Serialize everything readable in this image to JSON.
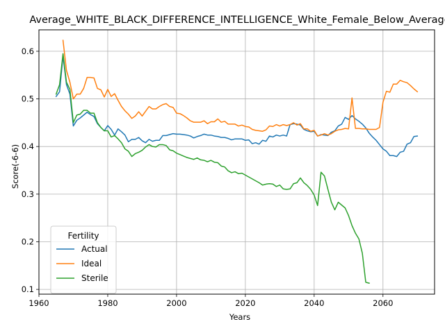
{
  "chart_data": {
    "type": "line",
    "title": "Average_WHITE_BLACK_DIFFERENCE_INTELLIGENCE_White_Female_Below_Average",
    "xlabel": "Years",
    "ylabel": "Score(-6-6)",
    "xlim": [
      1960,
      2075
    ],
    "ylim": [
      0.09,
      0.645
    ],
    "xticks": [
      1960,
      1980,
      2000,
      2020,
      2040,
      2060
    ],
    "yticks": [
      0.1,
      0.2,
      0.3,
      0.4,
      0.5,
      0.6
    ],
    "xtick_labels": [
      "1960",
      "1980",
      "2000",
      "2020",
      "2040",
      "2060"
    ],
    "ytick_labels": [
      "0.1",
      "0.2",
      "0.3",
      "0.4",
      "0.5",
      "0.6"
    ],
    "grid": true,
    "legend": {
      "title": "Fertility",
      "position": "lower-left"
    },
    "series": [
      {
        "name": "Actual",
        "color": "#1f77b4",
        "x": [
          1965,
          1966,
          1967,
          1968,
          1969,
          1970,
          1971,
          1972,
          1973,
          1974,
          1975,
          1976,
          1977,
          1978,
          1979,
          1980,
          1981,
          1982,
          1983,
          1984,
          1985,
          1986,
          1987,
          1988,
          1989,
          1990,
          1991,
          1992,
          1993,
          1994,
          1995,
          1996,
          1997,
          1998,
          1999,
          2000,
          2001,
          2002,
          2003,
          2004,
          2005,
          2006,
          2007,
          2008,
          2009,
          2010,
          2011,
          2012,
          2013,
          2014,
          2015,
          2016,
          2017,
          2018,
          2019,
          2020,
          2021,
          2022,
          2023,
          2024,
          2025,
          2026,
          2027,
          2028,
          2029,
          2030,
          2031,
          2032,
          2033,
          2034,
          2035,
          2036,
          2037,
          2038,
          2039,
          2040,
          2041,
          2042,
          2043,
          2044,
          2045,
          2046,
          2047,
          2048,
          2049,
          2050,
          2051,
          2052,
          2053,
          2054,
          2055,
          2056,
          2057,
          2058,
          2059,
          2060,
          2061,
          2062,
          2063,
          2064,
          2065,
          2066,
          2067,
          2068,
          2069,
          2070
        ],
        "y": [
          0.505,
          0.515,
          0.59,
          0.53,
          0.51,
          0.443,
          0.455,
          0.46,
          0.466,
          0.472,
          0.467,
          0.463,
          0.448,
          0.44,
          0.433,
          0.444,
          0.436,
          0.424,
          0.437,
          0.431,
          0.424,
          0.41,
          0.415,
          0.415,
          0.419,
          0.412,
          0.408,
          0.415,
          0.411,
          0.413,
          0.413,
          0.423,
          0.423,
          0.425,
          0.427,
          0.426,
          0.426,
          0.425,
          0.424,
          0.422,
          0.418,
          0.421,
          0.423,
          0.426,
          0.424,
          0.424,
          0.422,
          0.421,
          0.419,
          0.419,
          0.417,
          0.414,
          0.416,
          0.416,
          0.416,
          0.413,
          0.414,
          0.406,
          0.408,
          0.405,
          0.413,
          0.411,
          0.422,
          0.42,
          0.424,
          0.422,
          0.424,
          0.422,
          0.446,
          0.448,
          0.447,
          0.445,
          0.436,
          0.433,
          0.431,
          0.432,
          0.422,
          0.425,
          0.424,
          0.423,
          0.43,
          0.433,
          0.443,
          0.447,
          0.461,
          0.457,
          0.465,
          0.458,
          0.453,
          0.447,
          0.439,
          0.428,
          0.42,
          0.413,
          0.404,
          0.395,
          0.39,
          0.381,
          0.381,
          0.379,
          0.388,
          0.39,
          0.405,
          0.408,
          0.421,
          0.422
        ]
      },
      {
        "name": "Ideal",
        "color": "#ff7f0e",
        "x": [
          1967,
          1968,
          1969,
          1970,
          1971,
          1972,
          1973,
          1974,
          1975,
          1976,
          1977,
          1978,
          1979,
          1980,
          1981,
          1982,
          1983,
          1984,
          1985,
          1986,
          1987,
          1988,
          1989,
          1990,
          1991,
          1992,
          1993,
          1994,
          1995,
          1996,
          1997,
          1998,
          1999,
          2000,
          2001,
          2002,
          2003,
          2004,
          2005,
          2006,
          2007,
          2008,
          2009,
          2010,
          2011,
          2012,
          2013,
          2014,
          2015,
          2016,
          2017,
          2018,
          2019,
          2020,
          2021,
          2022,
          2023,
          2024,
          2025,
          2026,
          2027,
          2028,
          2029,
          2030,
          2031,
          2032,
          2033,
          2034,
          2035,
          2036,
          2037,
          2038,
          2039,
          2040,
          2041,
          2042,
          2043,
          2044,
          2045,
          2046,
          2047,
          2048,
          2049,
          2050,
          2051,
          2052,
          2053,
          2054,
          2055,
          2056,
          2057,
          2058,
          2059,
          2060,
          2061,
          2062,
          2063,
          2064,
          2065,
          2066,
          2067,
          2068,
          2069,
          2070
        ],
        "y": [
          0.623,
          0.56,
          0.535,
          0.5,
          0.51,
          0.51,
          0.522,
          0.545,
          0.545,
          0.544,
          0.522,
          0.519,
          0.504,
          0.52,
          0.505,
          0.511,
          0.497,
          0.484,
          0.475,
          0.468,
          0.459,
          0.464,
          0.473,
          0.464,
          0.474,
          0.484,
          0.479,
          0.479,
          0.484,
          0.488,
          0.49,
          0.484,
          0.482,
          0.47,
          0.469,
          0.465,
          0.46,
          0.454,
          0.451,
          0.451,
          0.451,
          0.454,
          0.448,
          0.452,
          0.452,
          0.458,
          0.451,
          0.453,
          0.447,
          0.447,
          0.447,
          0.443,
          0.445,
          0.442,
          0.441,
          0.436,
          0.434,
          0.433,
          0.432,
          0.435,
          0.443,
          0.442,
          0.446,
          0.443,
          0.446,
          0.444,
          0.446,
          0.45,
          0.445,
          0.448,
          0.437,
          0.437,
          0.432,
          0.434,
          0.422,
          0.424,
          0.427,
          0.424,
          0.427,
          0.432,
          0.435,
          0.436,
          0.438,
          0.437,
          0.502,
          0.438,
          0.438,
          0.437,
          0.437,
          0.436,
          0.436,
          0.436,
          0.44,
          0.493,
          0.516,
          0.514,
          0.531,
          0.531,
          0.539,
          0.536,
          0.534,
          0.528,
          0.521,
          0.515
        ]
      },
      {
        "name": "Sterile",
        "color": "#2ca02c",
        "x": [
          1965,
          1966,
          1967,
          1968,
          1969,
          1970,
          1971,
          1972,
          1973,
          1974,
          1975,
          1976,
          1977,
          1978,
          1979,
          1980,
          1981,
          1982,
          1983,
          1984,
          1985,
          1986,
          1987,
          1988,
          1989,
          1990,
          1991,
          1992,
          1993,
          1994,
          1995,
          1996,
          1997,
          1998,
          1999,
          2000,
          2001,
          2002,
          2003,
          2004,
          2005,
          2006,
          2007,
          2008,
          2009,
          2010,
          2011,
          2012,
          2013,
          2014,
          2015,
          2016,
          2017,
          2018,
          2019,
          2020,
          2021,
          2022,
          2023,
          2024,
          2025,
          2026,
          2027,
          2028,
          2029,
          2030,
          2031,
          2032,
          2033,
          2034,
          2035,
          2036,
          2037,
          2038,
          2039,
          2040,
          2041,
          2042,
          2043,
          2044,
          2045,
          2046,
          2047,
          2048,
          2049,
          2050,
          2051,
          2052,
          2053,
          2054,
          2055,
          2056
        ],
        "y": [
          0.51,
          0.53,
          0.595,
          0.535,
          0.52,
          0.45,
          0.466,
          0.468,
          0.476,
          0.476,
          0.47,
          0.47,
          0.45,
          0.44,
          0.433,
          0.433,
          0.42,
          0.423,
          0.416,
          0.408,
          0.395,
          0.39,
          0.379,
          0.385,
          0.388,
          0.392,
          0.399,
          0.404,
          0.4,
          0.399,
          0.404,
          0.404,
          0.402,
          0.393,
          0.391,
          0.386,
          0.383,
          0.38,
          0.377,
          0.375,
          0.373,
          0.376,
          0.372,
          0.371,
          0.368,
          0.371,
          0.367,
          0.366,
          0.359,
          0.357,
          0.349,
          0.345,
          0.347,
          0.343,
          0.344,
          0.34,
          0.336,
          0.332,
          0.328,
          0.324,
          0.319,
          0.321,
          0.322,
          0.321,
          0.316,
          0.319,
          0.311,
          0.31,
          0.311,
          0.322,
          0.324,
          0.334,
          0.324,
          0.318,
          0.31,
          0.298,
          0.276,
          0.346,
          0.338,
          0.31,
          0.283,
          0.267,
          0.283,
          0.277,
          0.271,
          0.255,
          0.234,
          0.218,
          0.206,
          0.176,
          0.115,
          0.113
        ]
      }
    ]
  }
}
